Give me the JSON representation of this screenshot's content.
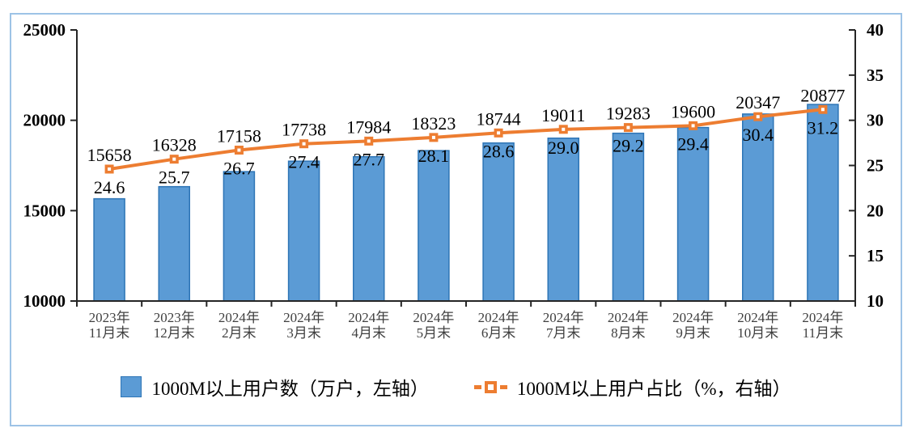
{
  "chart_data": {
    "type": "combo-bar-line",
    "title": "",
    "categories": [
      "2023年|11月末",
      "2023年|12月末",
      "2024年|2月末",
      "2024年|3月末",
      "2024年|4月末",
      "2024年|5月末",
      "2024年|6月末",
      "2024年|7月末",
      "2024年|8月末",
      "2024年|9月末",
      "2024年|10月末",
      "2024年|11月末"
    ],
    "series": [
      {
        "name": "1000M以上用户数（万户，左轴）",
        "type": "bar",
        "axis": "left",
        "values": [
          15658,
          16328,
          17158,
          17738,
          17984,
          18323,
          18744,
          19011,
          19283,
          19600,
          20347,
          20877
        ]
      },
      {
        "name": "1000M以上用户占比（%，右轴）",
        "type": "line",
        "axis": "right",
        "values": [
          24.6,
          25.7,
          26.7,
          27.4,
          27.7,
          28.1,
          28.6,
          29.0,
          29.2,
          29.4,
          30.4,
          31.2
        ]
      }
    ],
    "left_axis": {
      "min": 10000,
      "max": 25000,
      "step": 5000,
      "tick_labels": [
        "10000",
        "15000",
        "20000",
        "25000"
      ]
    },
    "right_axis": {
      "min": 10,
      "max": 40,
      "step": 5,
      "tick_labels": [
        "10",
        "15",
        "20",
        "25",
        "30",
        "35",
        "40"
      ]
    },
    "grid": false,
    "legend_position": "bottom"
  },
  "legend": {
    "bar_label": "1000M以上用户数（万户，左轴）",
    "line_label": "1000M以上用户占比（%，右轴）"
  },
  "colors": {
    "bar_fill": "#5B9BD5",
    "bar_stroke": "#2E75B6",
    "line": "#ED7D31",
    "axis": "#262626",
    "x_label": "#404040",
    "data_label": "#000000",
    "frame_border": "#9DC3E6"
  }
}
